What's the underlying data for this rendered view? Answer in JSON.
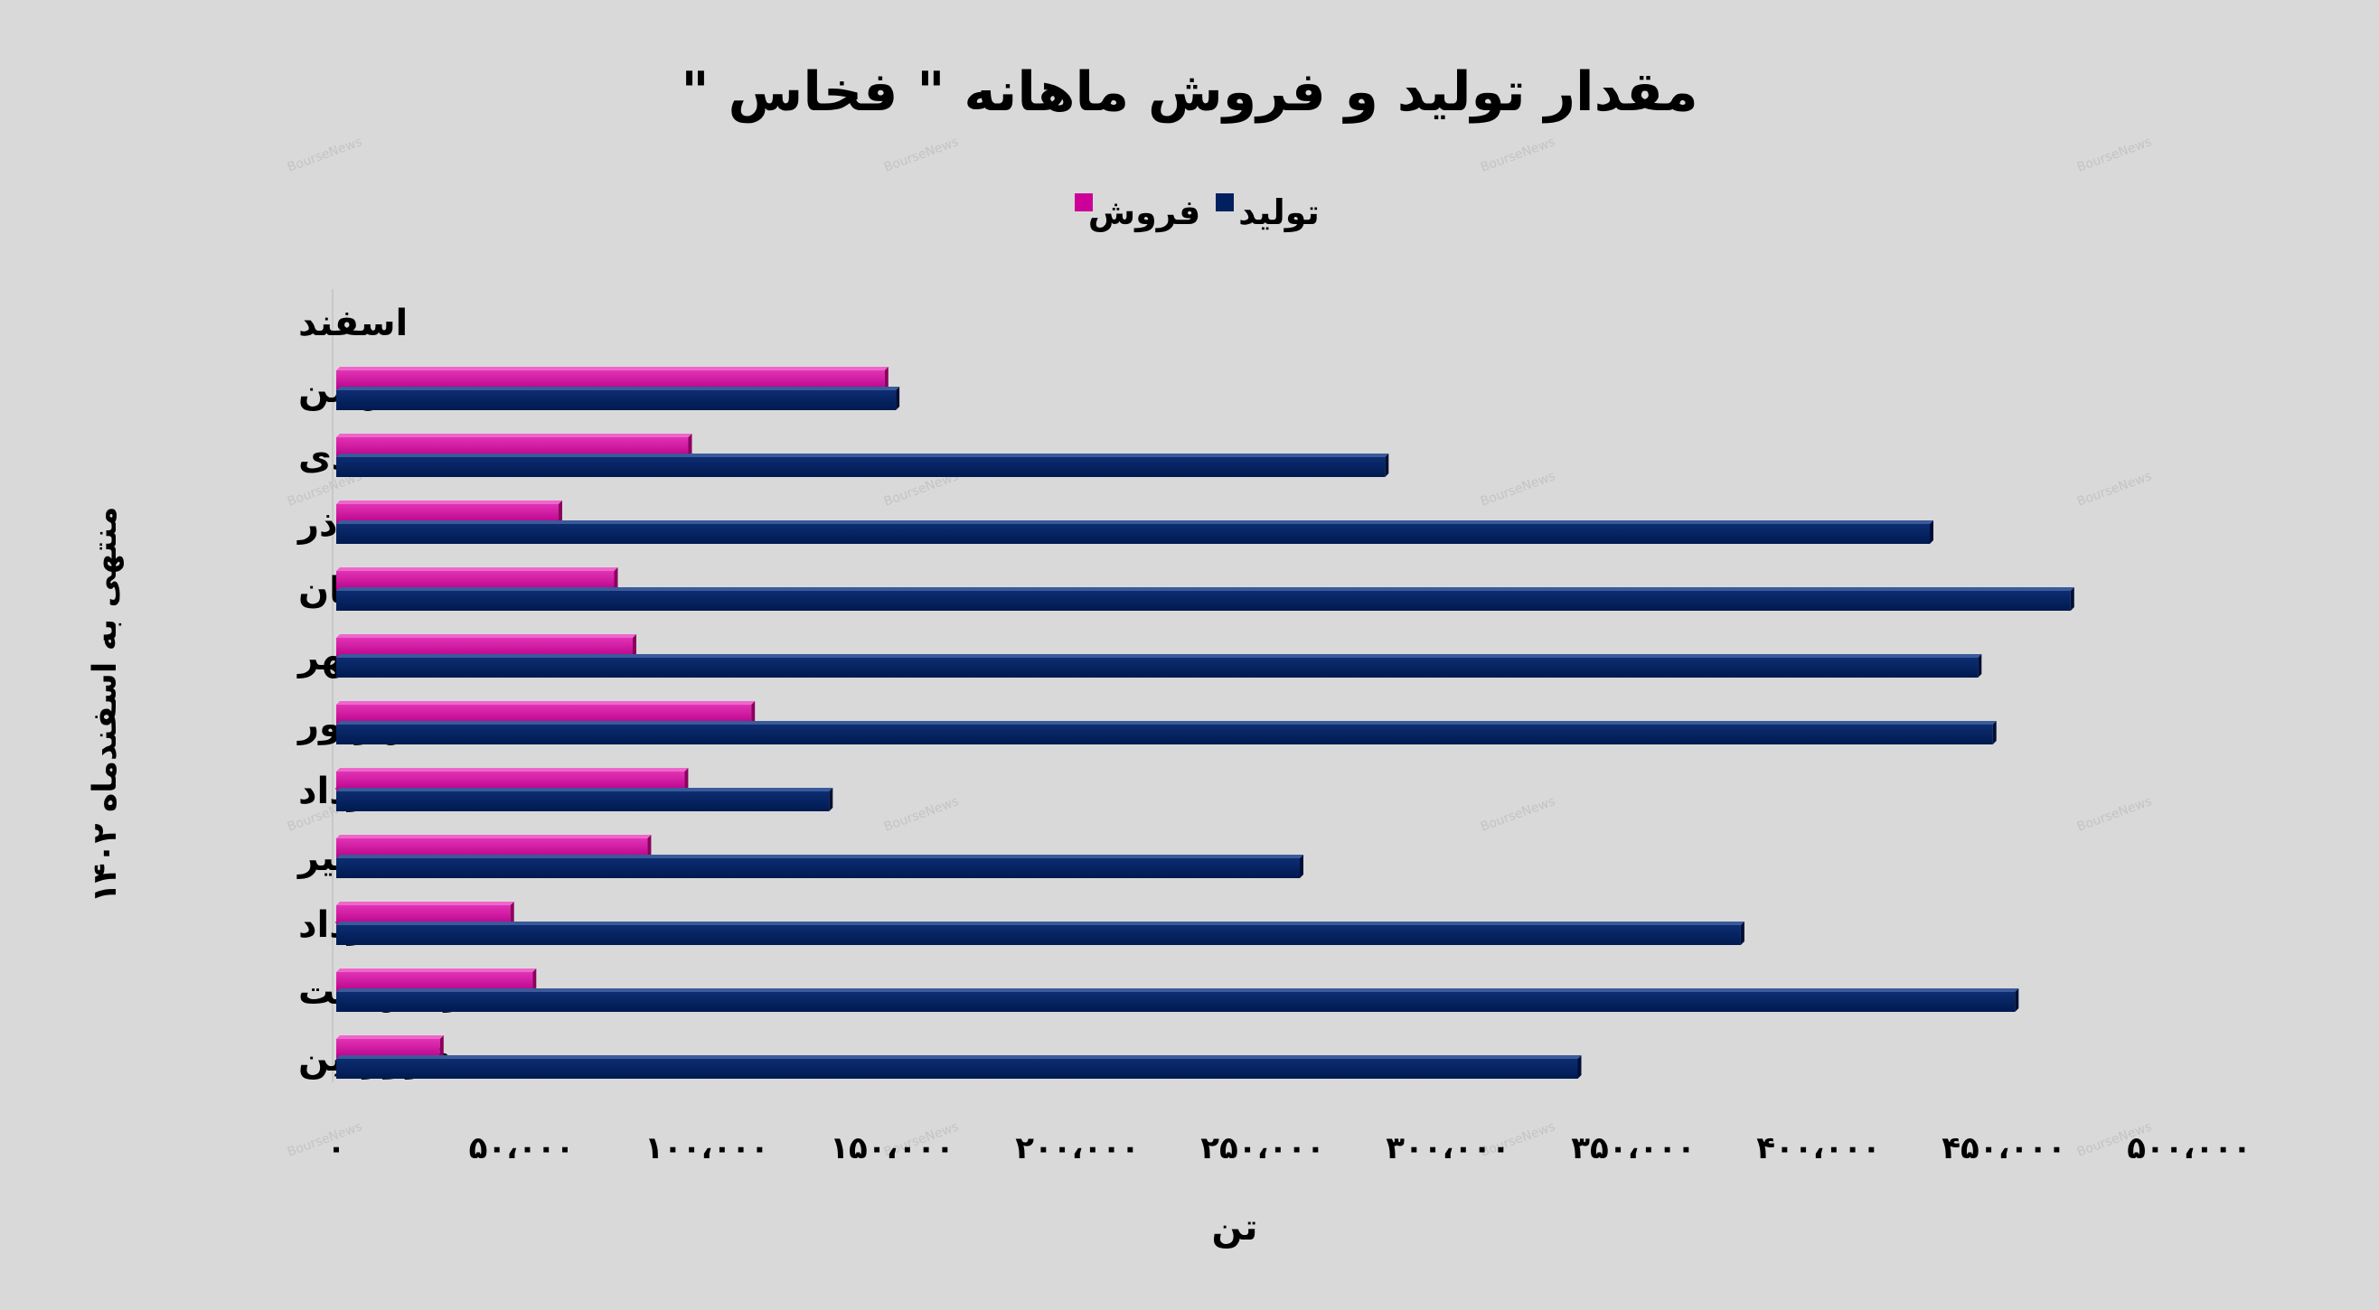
{
  "chart_data": {
    "type": "bar",
    "orientation": "horizontal",
    "title": "مقدار تولید و فروش ماهانه \" فخاس \"",
    "xlabel": "تن",
    "ylabel": "منتهی به اسفندماه ۱۴۰۲",
    "legend_position": "top",
    "grid": false,
    "xlim": [
      0,
      500000
    ],
    "x_ticks": [
      0,
      50000,
      100000,
      150000,
      200000,
      250000,
      300000,
      350000,
      400000,
      450000,
      500000
    ],
    "x_tick_labels": [
      "۰",
      "۵۰،۰۰۰",
      "۱۰۰،۰۰۰",
      "۱۵۰،۰۰۰",
      "۲۰۰،۰۰۰",
      "۲۵۰،۰۰۰",
      "۳۰۰،۰۰۰",
      "۳۵۰،۰۰۰",
      "۴۰۰،۰۰۰",
      "۴۵۰،۰۰۰",
      "۵۰۰،۰۰۰"
    ],
    "categories": [
      "اسفند",
      "بهمن",
      "دی",
      "آذر",
      "آبان",
      "مهر",
      "شهریور",
      "مرداد",
      "تیر",
      "خرداد",
      "اردیبهشت",
      "فروردین"
    ],
    "series": [
      {
        "name": "فروش",
        "color": "#cc0099",
        "values": [
          null,
          148000,
          95000,
          60000,
          75000,
          80000,
          112000,
          94000,
          84000,
          47000,
          53000,
          28000
        ]
      },
      {
        "name": "تولید",
        "color": "#002060",
        "values": [
          null,
          151000,
          283000,
          430000,
          468000,
          443000,
          447000,
          133000,
          260000,
          379000,
          453000,
          335000
        ]
      }
    ],
    "watermark": "BourseNews"
  }
}
